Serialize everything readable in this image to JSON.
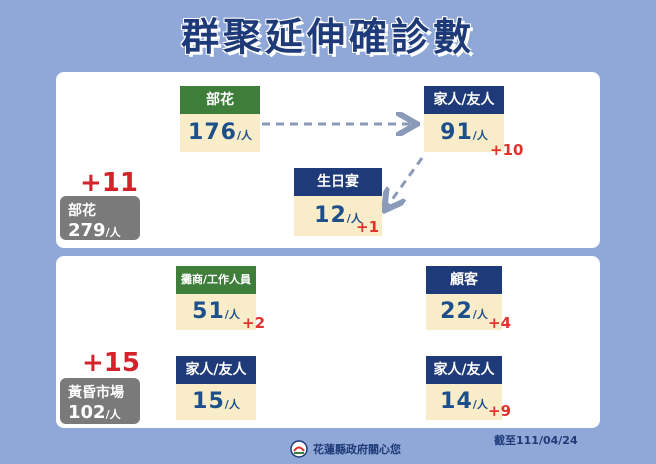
{
  "title": "群聚延伸確診數",
  "cluster1": {
    "increase": "+11",
    "label": "部花",
    "total": "279",
    "unit": "/人",
    "nodes": {
      "source": {
        "label": "部花",
        "value": "176",
        "unit": "/人"
      },
      "family": {
        "label": "家人/友人",
        "value": "91",
        "unit": "/人",
        "increase": "+10"
      },
      "birthday": {
        "label": "生日宴",
        "value": "12",
        "unit": "/人",
        "increase": "+1"
      }
    }
  },
  "cluster2": {
    "increase": "+15",
    "label": "黃昏市場",
    "total": "102",
    "unit": "/人",
    "nodes": {
      "vendors": {
        "label": "攤商/工作人員",
        "value": "51",
        "unit": "/人",
        "increase": "+2"
      },
      "customers": {
        "label": "顧客",
        "value": "22",
        "unit": "/人",
        "increase": "+4"
      },
      "vendor_family": {
        "label": "家人/友人",
        "value": "15",
        "unit": "/人"
      },
      "customer_family": {
        "label": "家人/友人",
        "value": "14",
        "unit": "/人",
        "increase": "+9"
      }
    }
  },
  "date": "截至111/04/24",
  "footer": "花蓮縣政府關心您",
  "colors": {
    "background": "#8fa8d8",
    "green": "#3f7d3a",
    "navy": "#1f3a78",
    "cream": "#f8edc8",
    "red": "#e0332e",
    "arrow": "#8a9ab8"
  }
}
